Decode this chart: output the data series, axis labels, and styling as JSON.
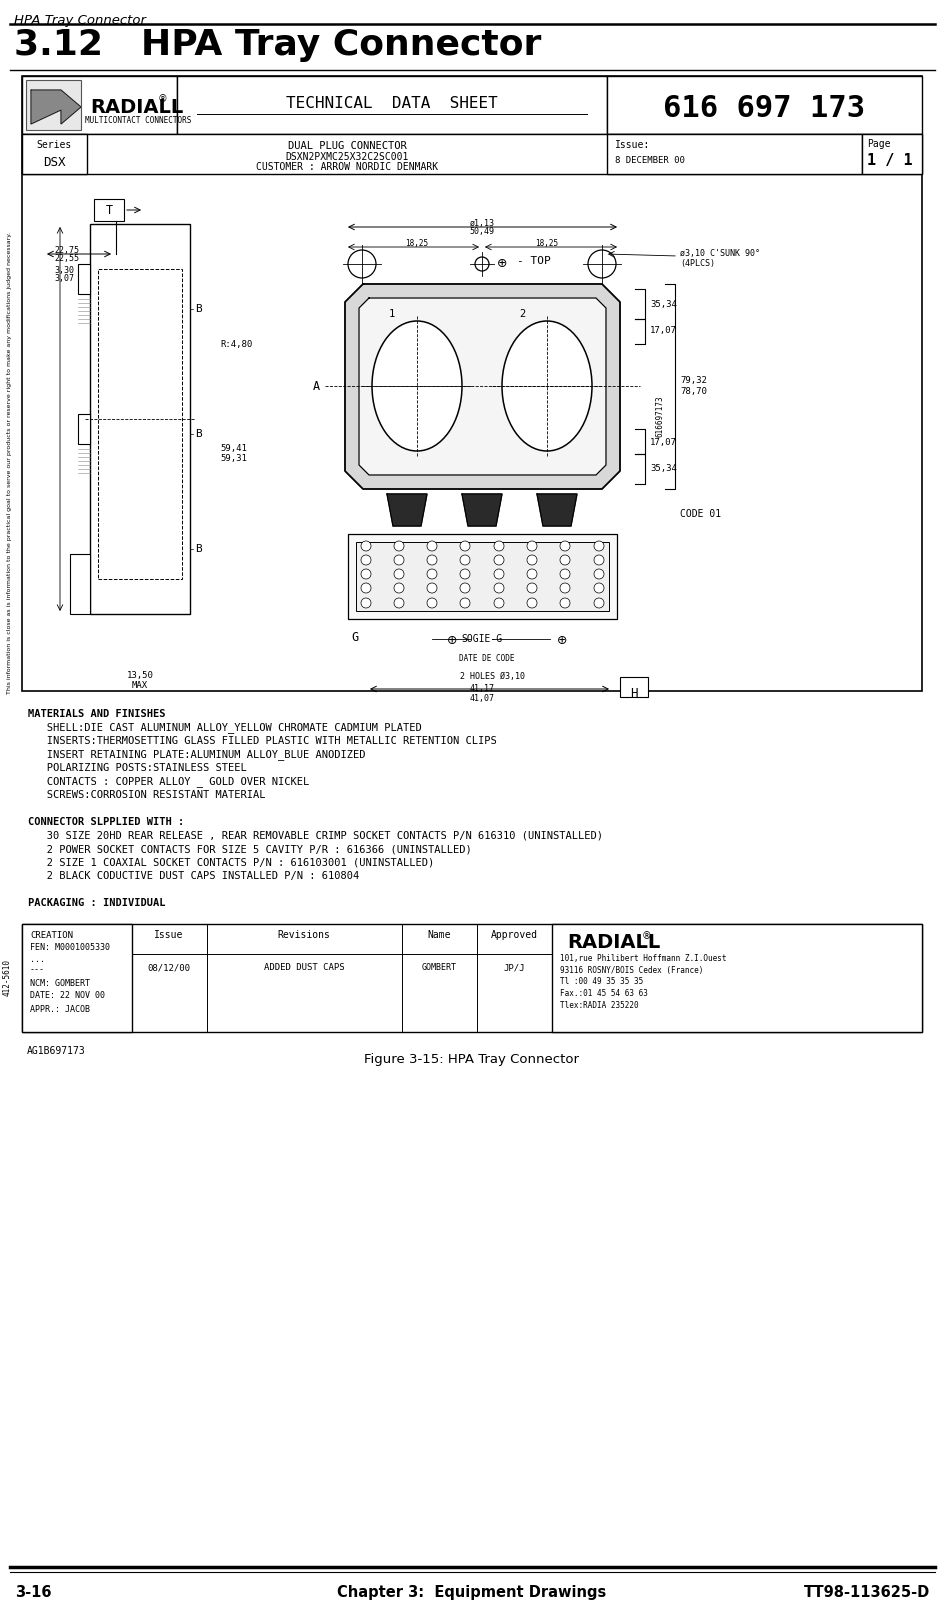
{
  "page_header": "HPA Tray Connector",
  "section_title": "3.12   HPA Tray Connector",
  "figure_caption": "Figure 3-15: HPA Tray Connector",
  "footer_left": "3-16",
  "footer_center": "Chapter 3:  Equipment Drawings",
  "footer_right": "TT98-113625-D",
  "bg_color": "#ffffff",
  "radiall_header": {
    "part_number": "616 697 173",
    "title": "TECHNICAL DATA SHEET",
    "series_value": "DSX",
    "product": "DUAL PLUG CONNECTOR",
    "ref": "DSXN2PXMC25X32C2SC001",
    "customer": "CUSTOMER : ARROW NORDIC DENMARK",
    "issue_date": "8 DECEMBER 00",
    "page_value": "1 / 1"
  },
  "materials_text": [
    "MATERIALS AND FINISHES",
    "   SHELL:DIE CAST ALUMINUM ALLOY_YELLOW CHROMATE CADMIUM PLATED",
    "   INSERTS:THERMOSETTING GLASS FILLED PLASTIC WITH METALLIC RETENTION CLIPS",
    "   INSERT RETAINING PLATE:ALUMINUM ALLOY_BLUE ANODIZED",
    "   POLARIZING POSTS:STAINLESS STEEL",
    "   CONTACTS : COPPER ALLOY _ GOLD OVER NICKEL",
    "   SCREWS:CORROSION RESISTANT MATERIAL",
    "",
    "CONNECTOR SLPPLIED WITH :",
    "   30 SIZE 20HD REAR RELEASE , REAR REMOVABLE CRIMP SOCKET CONTACTS P/N 616310 (UNINSTALLED)",
    "   2 POWER SOCKET CONTACTS FOR SIZE 5 CAVITY P/R : 616366 (UNINSTALLED)",
    "   2 SIZE 1 COAXIAL SOCKET CONTACTS P/N : 616103001 (UNINSTALLED)",
    "   2 BLACK CODUCTIVE DUST CAPS INSTALLED P/N : 610804",
    "",
    "PACKAGING : INDIVIDUAL"
  ],
  "bottom_table": {
    "creation_label": "CREATION",
    "fen_label": "FEN: M0001005330",
    "ncm_label": "NCM: GOMBERT",
    "date_label": "DATE: 22 NOV 00",
    "appr_label": "APPR.: JACOB",
    "date2": "08/12/00",
    "revision": "ADDED DUST CAPS",
    "name": "GOMBERT",
    "appr2": "JP/J",
    "issue_col": "Issue",
    "revisions_col": "Revisions",
    "name_col": "Name",
    "approved_col": "Approved",
    "doc_number": "AG1B697173",
    "radiall_address": "101,rue Philibert Hoffmann Z.I.Ouest\n93116 ROSNY/BOIS Cedex (France)\nTl :00 49 35 35 35\nFax.:01 45 54 63 63\nTlex:RADIA 235220"
  }
}
